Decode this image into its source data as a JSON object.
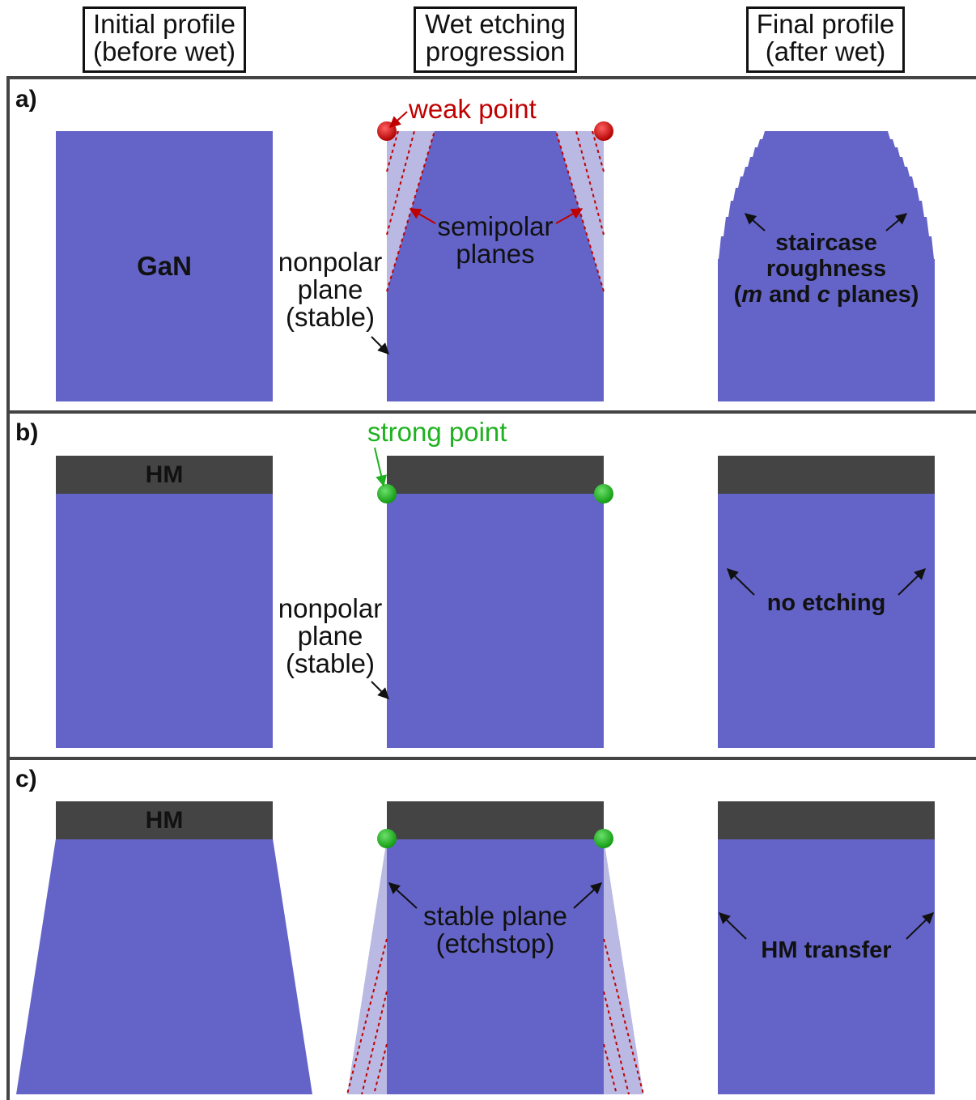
{
  "headers": {
    "initial": [
      "Initial profile",
      "(before wet)"
    ],
    "wet": [
      "Wet etching",
      "progression"
    ],
    "final": [
      "Final profile",
      "(after wet)"
    ]
  },
  "panels": {
    "a": {
      "label": "a)",
      "gan": "GaN",
      "weak_point": "weak point",
      "semipolar": [
        "semipolar",
        "planes"
      ],
      "nonpolar": [
        "nonpolar",
        "plane",
        "(stable)"
      ],
      "staircase": [
        "staircase",
        "roughness"
      ],
      "staircase_parts": [
        "(",
        "m",
        " and ",
        "c",
        " planes)"
      ]
    },
    "b": {
      "label": "b)",
      "hm": "HM",
      "strong_point": "strong point",
      "nonpolar": [
        "nonpolar",
        "plane",
        "(stable)"
      ],
      "no_etching": "no etching"
    },
    "c": {
      "label": "c)",
      "hm": "HM",
      "stable": [
        "stable plane",
        "(etchstop)"
      ],
      "hm_transfer": "HM transfer"
    }
  },
  "colors": {
    "gan": "#6464c8",
    "gan_light": "#b9b9e3",
    "hardmask": "#444444",
    "weak": "#c00000",
    "strong": "#1fb11f",
    "frame": "#444444"
  }
}
